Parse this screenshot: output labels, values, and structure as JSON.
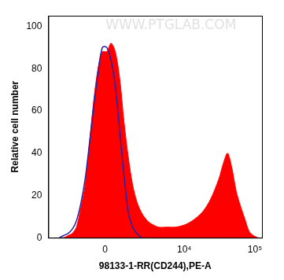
{
  "chart_data": {
    "type": "line",
    "x_label": "98133-1-RR(CD244),PE-A",
    "y_label": "Relative cell number",
    "watermark": "WWW.PTGLAB.COM",
    "x": [
      -3200,
      -2740,
      -2310,
      -1950,
      -1630,
      -1330,
      -1050,
      -800,
      -570,
      -350,
      -130,
      90,
      300,
      520,
      760,
      1000,
      1270,
      1560,
      1880,
      2250,
      2650,
      3100,
      4200,
      5600,
      7500,
      10000,
      13000,
      18000,
      23500,
      31100,
      35700,
      41100,
      47300,
      54400,
      62600,
      72000,
      83000,
      95500,
      110000
    ],
    "series": [
      {
        "type": "area",
        "color": "#ff0000",
        "values": [
          0,
          0,
          1,
          2,
          5,
          14,
          25,
          45,
          65,
          80,
          88,
          88,
          92,
          88,
          75,
          55,
          38,
          25,
          17,
          12,
          9,
          7,
          5,
          5,
          5,
          6,
          8,
          12,
          18,
          28,
          35,
          40,
          33,
          22,
          15,
          9,
          3,
          1,
          0
        ]
      },
      {
        "type": "line",
        "color": "#2222aa",
        "values": [
          0,
          1,
          2,
          4,
          8,
          16,
          28,
          45,
          62,
          78,
          90,
          90,
          84,
          72,
          50,
          30,
          12,
          5,
          2,
          0,
          null,
          null,
          null,
          null,
          null,
          null,
          null,
          null,
          null,
          null,
          null,
          null,
          null,
          null,
          null,
          null,
          null,
          null,
          null
        ]
      }
    ],
    "xlim": [
      -4700,
      126000
    ],
    "xticks": [
      0,
      {
        "value": 10000,
        "label": "10⁴"
      },
      {
        "value": 100000,
        "label": "10⁵"
      }
    ],
    "ylim": [
      0,
      105
    ],
    "yticks": [
      0,
      20,
      40,
      60,
      80,
      100
    ],
    "grid": false
  }
}
